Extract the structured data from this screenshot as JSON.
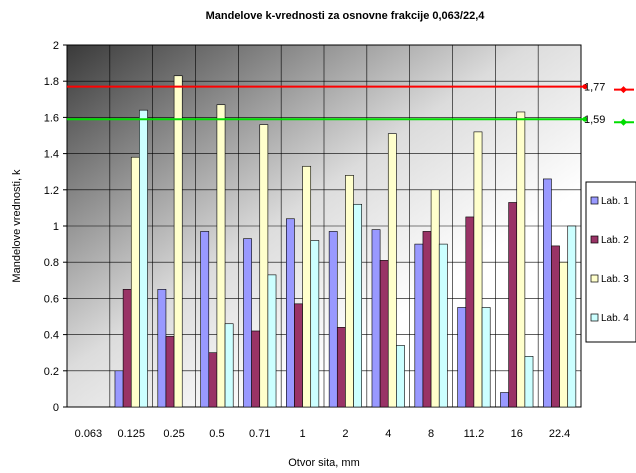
{
  "chart_data": {
    "type": "bar",
    "title": "Mandelove k-vrednosti za osnovne frakcije 0,063/22,4",
    "xlabel": "Otvor sita, mm",
    "ylabel": "Mandelove vrednosti, k",
    "ylim": [
      0,
      2
    ],
    "yticks": [
      "0",
      "0.2",
      "0.4",
      "0.6",
      "0.8",
      "1",
      "1.2",
      "1.4",
      "1.6",
      "1.8",
      "2"
    ],
    "categories": [
      "0.063",
      "0.125",
      "0.25",
      "0.5",
      "0.71",
      "1",
      "2",
      "4",
      "8",
      "11.2",
      "16",
      "22.4"
    ],
    "grid": true,
    "legend_position": "right",
    "series": [
      {
        "name": "Lab. 1",
        "color": "#9999ff",
        "values": [
          0,
          0.2,
          0.65,
          0.97,
          0.93,
          1.04,
          0.97,
          0.98,
          0.9,
          0.55,
          0.08,
          1.26
        ]
      },
      {
        "name": "Lab. 2",
        "color": "#993366",
        "values": [
          0,
          0.65,
          0.39,
          0.3,
          0.42,
          0.57,
          0.44,
          0.81,
          0.97,
          1.05,
          1.13,
          0.89
        ]
      },
      {
        "name": "Lab. 3",
        "color": "#ffffcc",
        "values": [
          0,
          1.38,
          1.83,
          1.67,
          1.56,
          1.33,
          1.28,
          1.51,
          1.2,
          1.52,
          1.63,
          0.8
        ]
      },
      {
        "name": "Lab. 4",
        "color": "#ccffff",
        "values": [
          0,
          1.64,
          0,
          0.46,
          0.73,
          0.92,
          1.12,
          0.34,
          0.9,
          0.55,
          0.28,
          1.0
        ]
      }
    ],
    "reference_lines": [
      {
        "value": 1.77,
        "label": "1,77",
        "color": "#ff0000"
      },
      {
        "value": 1.59,
        "label": "1,59",
        "color": "#00dd00"
      }
    ]
  }
}
